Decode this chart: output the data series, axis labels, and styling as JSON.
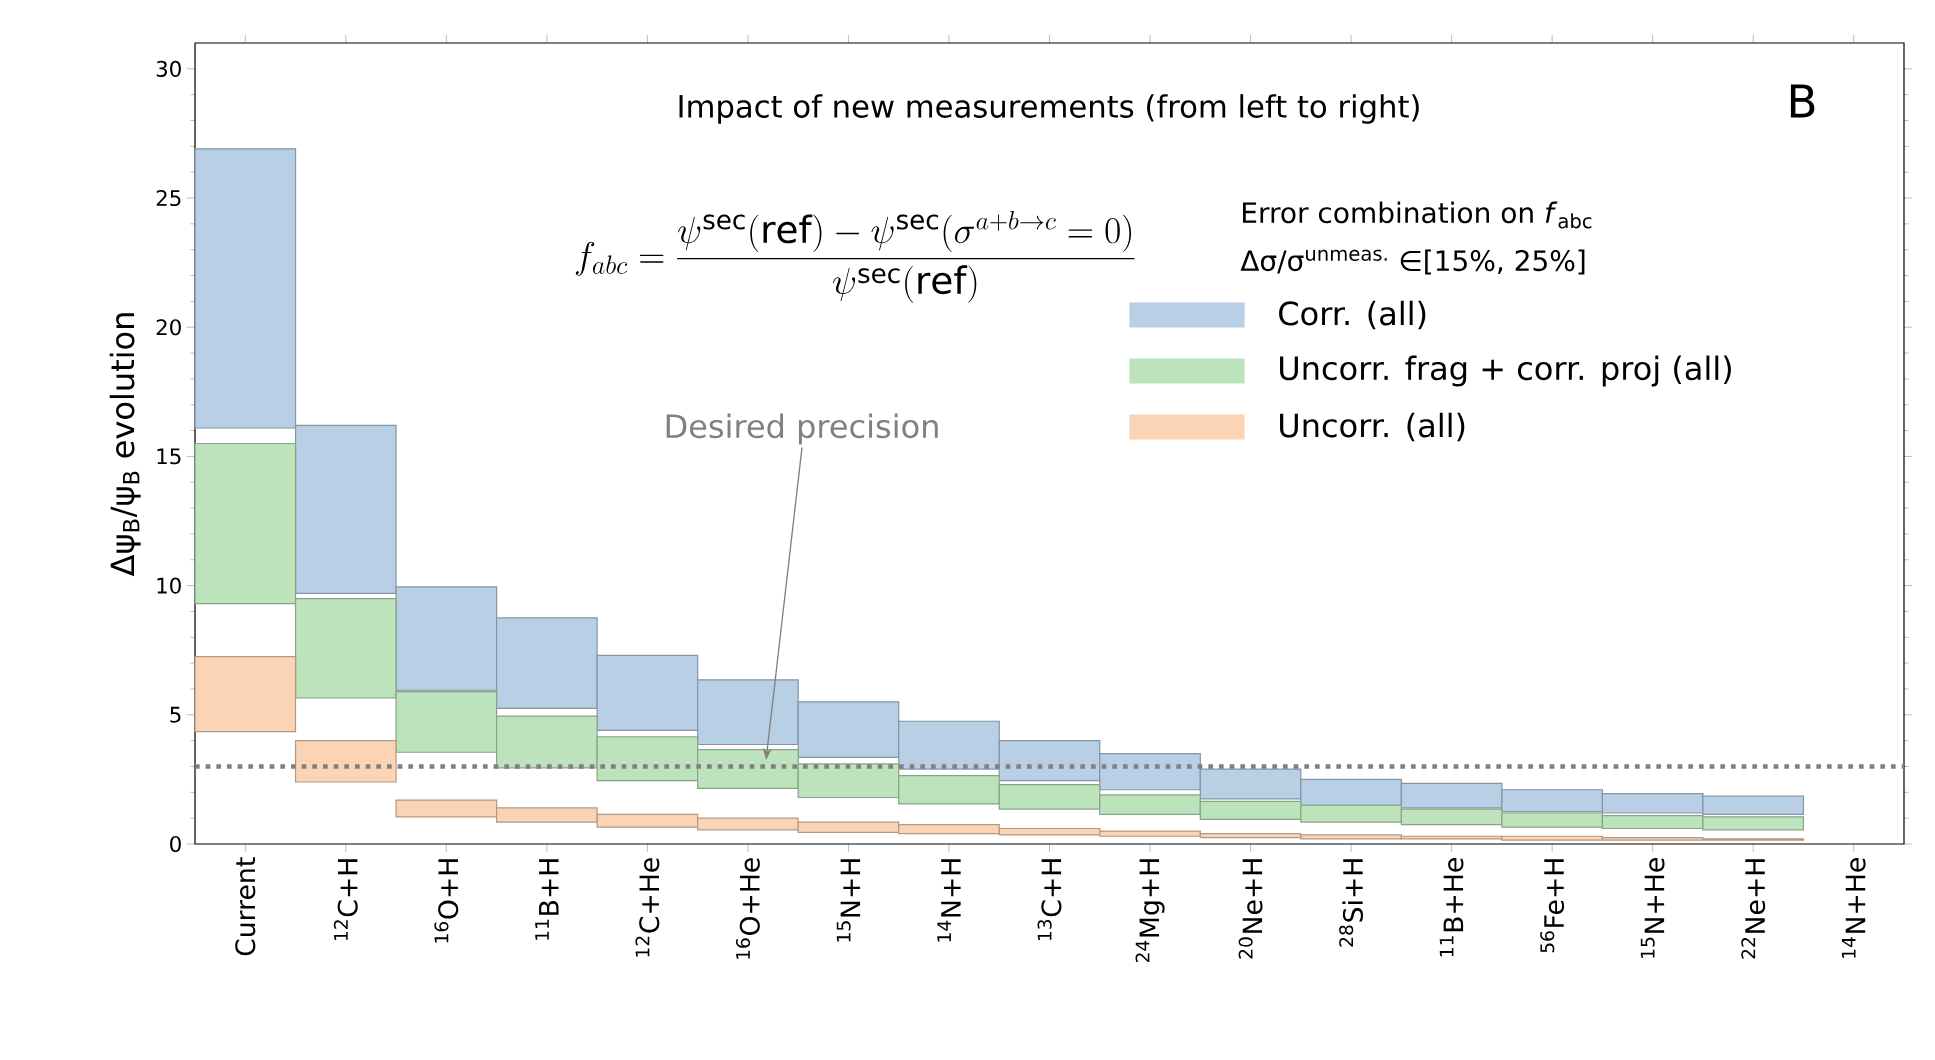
{
  "chart_data": {
    "type": "bar",
    "title": "Impact of new measurements (from left to right)",
    "ylabel": "Δψ$_{B}$/ψ$_{B}$ evolution",
    "legend_title": "Error combination on *f*$_{abc}$",
    "categories": [
      "Current",
      "$^{12}$C+H",
      "$^{16}$O+H",
      "$^{11}$B+H",
      "$^{12}$C+He",
      "$^{16}$O+He",
      "$^{15}$N+H",
      "$^{14}$N+H",
      "$^{13}$C+H",
      "$^{24}$Mg+H",
      "$^{20}$Ne+H",
      "$^{28}$Si+H",
      "$^{11}$B+He",
      "$^{56}$Fe+H",
      "$^{15}$N+He",
      "$^{22}$Ne+H",
      "$^{14}$N+He"
    ],
    "series": [
      {
        "name": "Corr. (all)",
        "color": "#b8cfe6",
        "base": [
          16.1,
          9.7,
          5.95,
          5.25,
          4.4,
          3.85,
          3.35,
          2.9,
          2.45,
          2.1,
          1.75,
          1.5,
          1.4,
          1.25,
          1.2,
          1.15,
          null
        ],
        "values": [
          10.8,
          6.5,
          4.0,
          3.5,
          2.9,
          2.5,
          2.15,
          1.85,
          1.55,
          1.4,
          1.15,
          1.0,
          0.95,
          0.85,
          0.75,
          0.7,
          null
        ]
      },
      {
        "name": "Uncorr. frag + corr. proj (all)",
        "color": "#bde3bd",
        "base": [
          9.3,
          5.65,
          3.55,
          2.95,
          2.45,
          2.15,
          1.8,
          1.55,
          1.35,
          1.15,
          0.95,
          0.85,
          0.75,
          0.65,
          0.6,
          0.55,
          null
        ],
        "values": [
          6.2,
          3.85,
          2.35,
          2.0,
          1.7,
          1.5,
          1.3,
          1.1,
          0.95,
          0.75,
          0.7,
          0.65,
          0.6,
          0.55,
          0.5,
          0.5,
          null
        ]
      },
      {
        "name": "Uncorr. (all)",
        "color": "#fad4b4",
        "base": [
          4.35,
          2.4,
          1.05,
          0.85,
          0.65,
          0.55,
          0.45,
          0.4,
          0.35,
          0.3,
          0.25,
          0.2,
          0.2,
          0.15,
          0.15,
          0.15,
          null
        ],
        "values": [
          2.9,
          1.6,
          0.65,
          0.55,
          0.5,
          0.45,
          0.4,
          0.35,
          0.25,
          0.2,
          0.15,
          0.15,
          0.1,
          0.15,
          0.1,
          0.05,
          null
        ]
      }
    ],
    "ylim": [
      0,
      31
    ],
    "yticks": [
      0,
      5,
      10,
      15,
      20,
      25,
      30
    ],
    "ref_lines": [
      {
        "axis": "y",
        "value": 3,
        "color": "#808080",
        "line_style": "dotted"
      }
    ],
    "annotations": [
      "B",
      "f_{abc} = \\frac{\\psi^{\\mathrm{sec}}(\\mathrm{ref}) - \\psi^{\\mathrm{sec}}(\\sigma^{a+b\\to c} = 0)}{\\psi^{\\mathrm{sec}}(\\mathrm{ref})}",
      "Δσ/σ$^{unmeas.}$ ∈[15%, 25%]",
      "Desired precision"
    ],
    "legend": "top right"
  }
}
